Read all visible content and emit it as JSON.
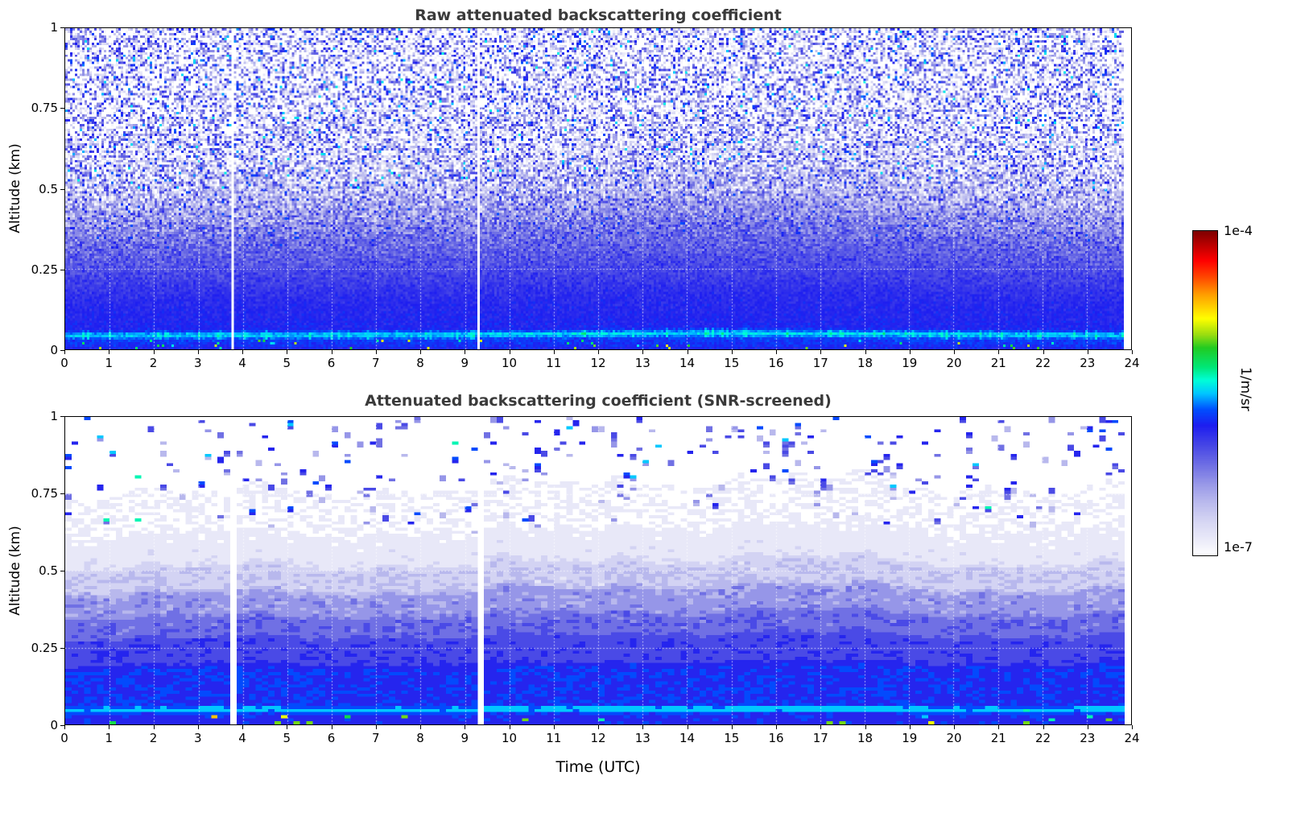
{
  "figure": {
    "background": "#ffffff"
  },
  "chart_data": [
    {
      "type": "heatmap",
      "title": "Raw attenuated backscattering coefficient",
      "ylabel": "Altitude (km)",
      "xlabel": "",
      "xlim": [
        0,
        24
      ],
      "ylim": [
        0,
        1
      ],
      "xticks": [
        0,
        1,
        2,
        3,
        4,
        5,
        6,
        7,
        8,
        9,
        10,
        11,
        12,
        13,
        14,
        15,
        16,
        17,
        18,
        19,
        20,
        21,
        22,
        23,
        24
      ],
      "yticks": [
        "1",
        "0.75",
        "0.5",
        "0.25",
        "0"
      ],
      "grid": "dotted",
      "units": "1/m/sr",
      "scale": "log10",
      "vmin": 1e-07,
      "vmax": 0.0001,
      "data_gaps_utc": [
        {
          "t": 3.77,
          "halfwidth": 0.05
        },
        {
          "t": 9.32,
          "halfwidth": 0.035
        }
      ],
      "data_end_utc": 23.85,
      "mean_profile": {
        "altitude_km": [
          0,
          0.03,
          0.045,
          0.06,
          0.15,
          0.25,
          0.35,
          0.45,
          0.6,
          0.8,
          1
        ],
        "log10_beta": [
          -5.8,
          -5.7,
          -5.45,
          -5.8,
          -5.85,
          -6.0,
          -6.2,
          -6.5,
          -6.8,
          -7.0,
          -7.0
        ]
      },
      "noise_description": "unscreened photon noise: blue speckle density grows with altitude, near-surface bright layer at ~0.045 km, solid blue boundary layer below ~0.3 km"
    },
    {
      "type": "heatmap",
      "title": "Attenuated backscattering coefficient (SNR-screened)",
      "ylabel": "Altitude (km)",
      "xlabel": "Time (UTC)",
      "xlim": [
        0,
        24
      ],
      "ylim": [
        0,
        1
      ],
      "xticks": [
        0,
        1,
        2,
        3,
        4,
        5,
        6,
        7,
        8,
        9,
        10,
        11,
        12,
        13,
        14,
        15,
        16,
        17,
        18,
        19,
        20,
        21,
        22,
        23,
        24
      ],
      "yticks": [
        "1",
        "0.75",
        "0.5",
        "0.25",
        "0"
      ],
      "grid": "dotted",
      "units": "1/m/sr",
      "scale": "log10",
      "vmin": 1e-07,
      "vmax": 0.0001,
      "data_gaps_utc": [
        {
          "t": 3.77,
          "halfwidth": 0.075
        },
        {
          "t": 9.32,
          "halfwidth": 0.075
        }
      ],
      "data_end_utc": 23.85,
      "mean_profile": {
        "altitude_km": [
          0,
          0.032,
          0.04,
          0.052,
          0.06,
          0.18,
          0.2,
          0.27,
          0.29,
          0.34,
          0.36,
          0.42,
          0.44,
          0.5,
          0.52,
          0.62,
          0.75,
          1
        ],
        "log10_beta": [
          -5.8,
          -5.8,
          -5.5,
          -5.5,
          -5.77,
          -5.77,
          -5.95,
          -5.95,
          -6.13,
          -6.13,
          -6.34,
          -6.34,
          -6.61,
          -6.61,
          -6.79,
          -6.88,
          -7.0,
          -7.0
        ]
      },
      "noise_description": "low-SNR pixels removed: stepped blue layers up to ~0.55 km, near-surface bright layer at ~0.045 km, isolated blue speckle above ~0.6 km"
    }
  ],
  "colorbar": {
    "units_label": "1/m/sr",
    "max_label": "1e-4",
    "min_label": "1e-7",
    "stops": [
      [
        0.0,
        "#ffffff"
      ],
      [
        0.04,
        "#eeeefa"
      ],
      [
        0.1,
        "#d8d8f4"
      ],
      [
        0.16,
        "#bcbcee"
      ],
      [
        0.22,
        "#9898e8"
      ],
      [
        0.28,
        "#6e6ee4"
      ],
      [
        0.34,
        "#4646e6"
      ],
      [
        0.4,
        "#1e1ef0"
      ],
      [
        0.45,
        "#0050ff"
      ],
      [
        0.5,
        "#00c8ff"
      ],
      [
        0.54,
        "#00ffd8"
      ],
      [
        0.58,
        "#00e878"
      ],
      [
        0.64,
        "#22cc22"
      ],
      [
        0.68,
        "#99dd11"
      ],
      [
        0.73,
        "#ffff00"
      ],
      [
        0.8,
        "#ffa500"
      ],
      [
        0.86,
        "#ff4500"
      ],
      [
        0.91,
        "#ff0000"
      ],
      [
        1.0,
        "#7f0000"
      ]
    ]
  }
}
